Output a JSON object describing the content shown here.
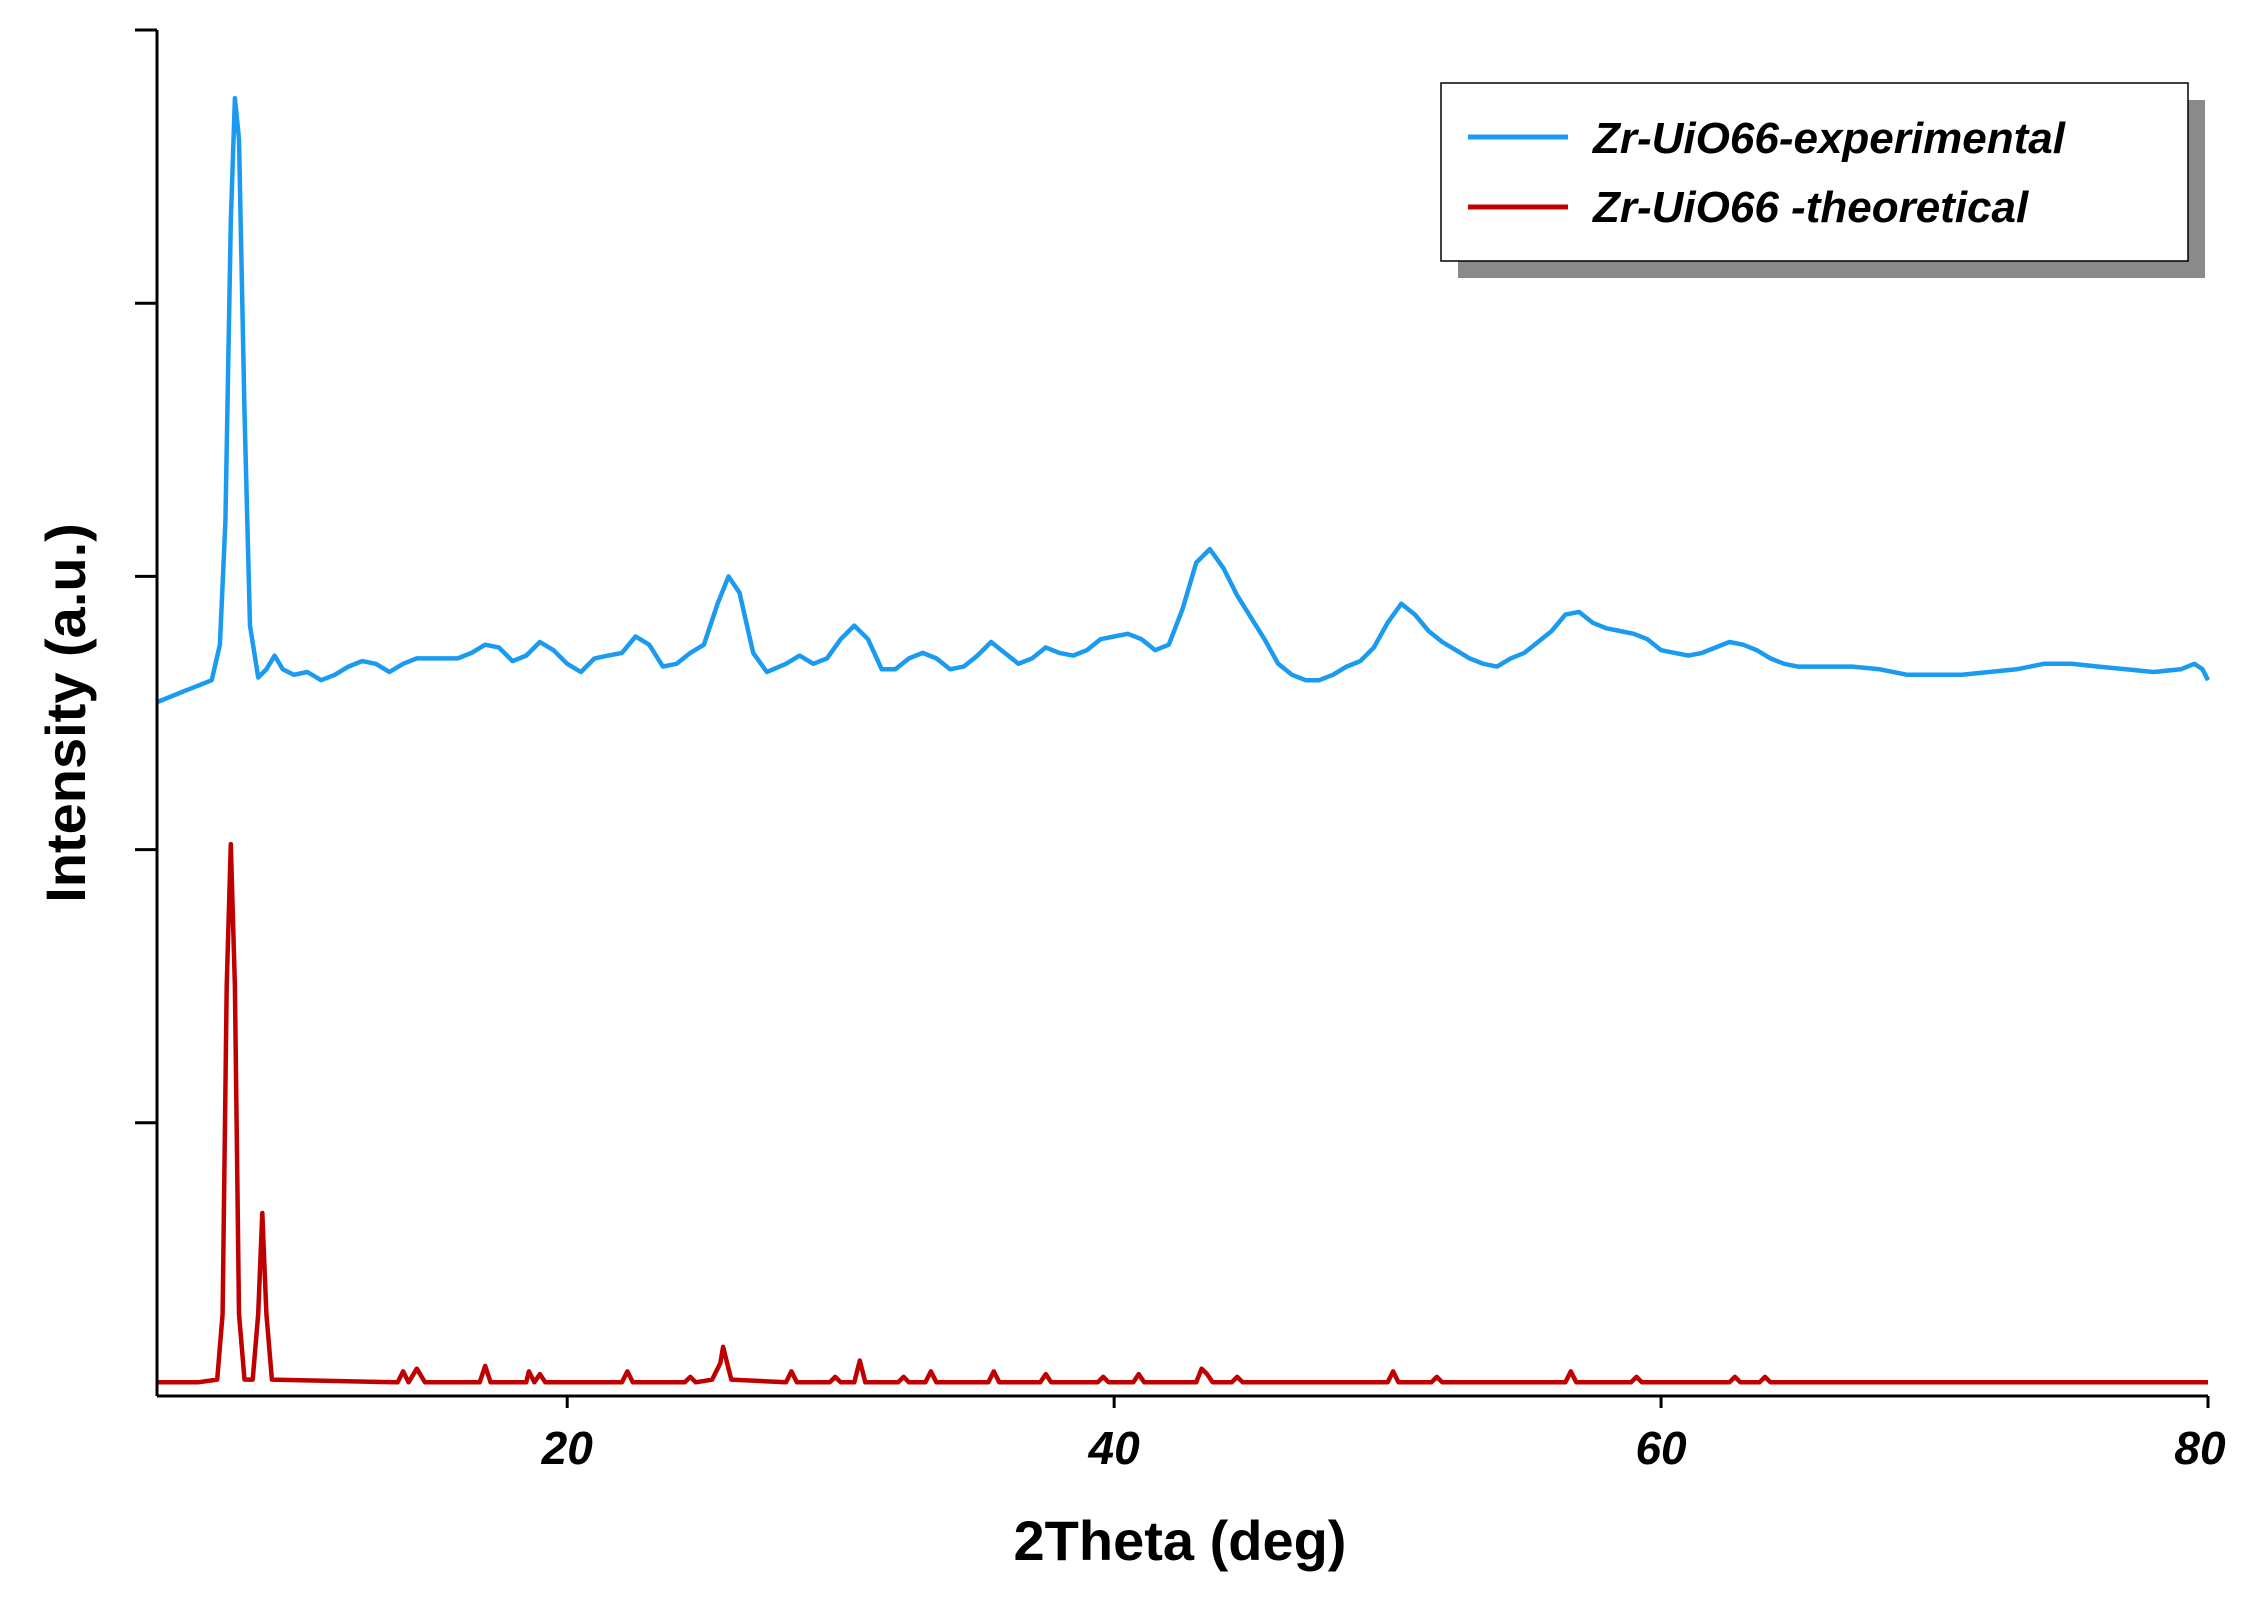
{
  "chart_data": {
    "type": "line",
    "title": "",
    "xlabel": "2Theta (deg)",
    "ylabel": "Intensity (a.u.)",
    "xlim": [
      5,
      80
    ],
    "ylim": [
      0,
      5
    ],
    "x_ticks": [
      20,
      40,
      60,
      80
    ],
    "x_tick_labels": [
      "20",
      "40",
      "60",
      "80"
    ],
    "y_ticks": [
      1,
      2,
      3,
      4,
      5
    ],
    "y_tick_labels_shown": false,
    "grid": false,
    "legend_position": "top-right",
    "series": [
      {
        "name": "Zr-UiO66-experimental",
        "color": "#1a9bf0",
        "points": [
          [
            5.0,
            2.54
          ],
          [
            5.5,
            2.56
          ],
          [
            6.0,
            2.58
          ],
          [
            6.5,
            2.6
          ],
          [
            7.0,
            2.62
          ],
          [
            7.3,
            2.75
          ],
          [
            7.5,
            3.2
          ],
          [
            7.7,
            4.3
          ],
          [
            7.85,
            4.75
          ],
          [
            8.0,
            4.6
          ],
          [
            8.2,
            3.6
          ],
          [
            8.4,
            2.82
          ],
          [
            8.7,
            2.63
          ],
          [
            9.0,
            2.66
          ],
          [
            9.3,
            2.71
          ],
          [
            9.6,
            2.66
          ],
          [
            10.0,
            2.64
          ],
          [
            10.5,
            2.65
          ],
          [
            11.0,
            2.62
          ],
          [
            11.5,
            2.64
          ],
          [
            12.0,
            2.67
          ],
          [
            12.5,
            2.69
          ],
          [
            13.0,
            2.68
          ],
          [
            13.5,
            2.65
          ],
          [
            14.0,
            2.68
          ],
          [
            14.5,
            2.7
          ],
          [
            15.0,
            2.7
          ],
          [
            16.0,
            2.7
          ],
          [
            16.5,
            2.72
          ],
          [
            17.0,
            2.75
          ],
          [
            17.5,
            2.74
          ],
          [
            18.0,
            2.69
          ],
          [
            18.5,
            2.71
          ],
          [
            19.0,
            2.76
          ],
          [
            19.5,
            2.73
          ],
          [
            20.0,
            2.68
          ],
          [
            20.5,
            2.65
          ],
          [
            21.0,
            2.7
          ],
          [
            21.5,
            2.71
          ],
          [
            22.0,
            2.72
          ],
          [
            22.5,
            2.78
          ],
          [
            23.0,
            2.75
          ],
          [
            23.5,
            2.67
          ],
          [
            24.0,
            2.68
          ],
          [
            24.5,
            2.72
          ],
          [
            25.0,
            2.75
          ],
          [
            25.5,
            2.9
          ],
          [
            25.9,
            3.0
          ],
          [
            26.3,
            2.94
          ],
          [
            26.8,
            2.72
          ],
          [
            27.3,
            2.65
          ],
          [
            28.0,
            2.68
          ],
          [
            28.5,
            2.71
          ],
          [
            29.0,
            2.68
          ],
          [
            29.5,
            2.7
          ],
          [
            30.0,
            2.77
          ],
          [
            30.5,
            2.82
          ],
          [
            31.0,
            2.77
          ],
          [
            31.5,
            2.66
          ],
          [
            32.0,
            2.66
          ],
          [
            32.5,
            2.7
          ],
          [
            33.0,
            2.72
          ],
          [
            33.5,
            2.7
          ],
          [
            34.0,
            2.66
          ],
          [
            34.5,
            2.67
          ],
          [
            35.0,
            2.71
          ],
          [
            35.5,
            2.76
          ],
          [
            36.0,
            2.72
          ],
          [
            36.5,
            2.68
          ],
          [
            37.0,
            2.7
          ],
          [
            37.5,
            2.74
          ],
          [
            38.0,
            2.72
          ],
          [
            38.5,
            2.71
          ],
          [
            39.0,
            2.73
          ],
          [
            39.5,
            2.77
          ],
          [
            40.0,
            2.78
          ],
          [
            40.5,
            2.79
          ],
          [
            41.0,
            2.77
          ],
          [
            41.5,
            2.73
          ],
          [
            42.0,
            2.75
          ],
          [
            42.5,
            2.88
          ],
          [
            43.0,
            3.05
          ],
          [
            43.5,
            3.1
          ],
          [
            44.0,
            3.03
          ],
          [
            44.5,
            2.93
          ],
          [
            45.0,
            2.85
          ],
          [
            45.5,
            2.77
          ],
          [
            46.0,
            2.68
          ],
          [
            46.5,
            2.64
          ],
          [
            47.0,
            2.62
          ],
          [
            47.5,
            2.62
          ],
          [
            48.0,
            2.64
          ],
          [
            48.5,
            2.67
          ],
          [
            49.0,
            2.69
          ],
          [
            49.5,
            2.74
          ],
          [
            50.0,
            2.83
          ],
          [
            50.5,
            2.9
          ],
          [
            51.0,
            2.86
          ],
          [
            51.5,
            2.8
          ],
          [
            52.0,
            2.76
          ],
          [
            52.5,
            2.73
          ],
          [
            53.0,
            2.7
          ],
          [
            53.5,
            2.68
          ],
          [
            54.0,
            2.67
          ],
          [
            54.5,
            2.7
          ],
          [
            55.0,
            2.72
          ],
          [
            55.5,
            2.76
          ],
          [
            56.0,
            2.8
          ],
          [
            56.5,
            2.86
          ],
          [
            57.0,
            2.87
          ],
          [
            57.5,
            2.83
          ],
          [
            58.0,
            2.81
          ],
          [
            58.5,
            2.8
          ],
          [
            59.0,
            2.79
          ],
          [
            59.5,
            2.77
          ],
          [
            60.0,
            2.73
          ],
          [
            60.5,
            2.72
          ],
          [
            61.0,
            2.71
          ],
          [
            61.5,
            2.72
          ],
          [
            62.0,
            2.74
          ],
          [
            62.5,
            2.76
          ],
          [
            63.0,
            2.75
          ],
          [
            63.5,
            2.73
          ],
          [
            64.0,
            2.7
          ],
          [
            64.5,
            2.68
          ],
          [
            65.0,
            2.67
          ],
          [
            66.0,
            2.67
          ],
          [
            67.0,
            2.67
          ],
          [
            68.0,
            2.66
          ],
          [
            69.0,
            2.64
          ],
          [
            70.0,
            2.64
          ],
          [
            71.0,
            2.64
          ],
          [
            72.0,
            2.65
          ],
          [
            73.0,
            2.66
          ],
          [
            74.0,
            2.68
          ],
          [
            75.0,
            2.68
          ],
          [
            76.0,
            2.67
          ],
          [
            77.0,
            2.66
          ],
          [
            78.0,
            2.65
          ],
          [
            79.0,
            2.66
          ],
          [
            79.5,
            2.68
          ],
          [
            79.8,
            2.66
          ],
          [
            80.0,
            2.62
          ]
        ]
      },
      {
        "name": "Zr-UiO66 -theoretical",
        "color": "#c00000",
        "points": [
          [
            5.0,
            0.05
          ],
          [
            6.5,
            0.05
          ],
          [
            7.2,
            0.06
          ],
          [
            7.4,
            0.3
          ],
          [
            7.55,
            1.5
          ],
          [
            7.7,
            2.02
          ],
          [
            7.85,
            1.5
          ],
          [
            8.0,
            0.3
          ],
          [
            8.2,
            0.06
          ],
          [
            8.5,
            0.06
          ],
          [
            8.7,
            0.3
          ],
          [
            8.85,
            0.67
          ],
          [
            9.0,
            0.3
          ],
          [
            9.2,
            0.06
          ],
          [
            13.8,
            0.05
          ],
          [
            14.0,
            0.09
          ],
          [
            14.2,
            0.05
          ],
          [
            14.5,
            0.1
          ],
          [
            14.8,
            0.05
          ],
          [
            16.8,
            0.05
          ],
          [
            17.0,
            0.11
          ],
          [
            17.2,
            0.05
          ],
          [
            18.5,
            0.05
          ],
          [
            18.6,
            0.09
          ],
          [
            18.8,
            0.05
          ],
          [
            19.0,
            0.08
          ],
          [
            19.2,
            0.05
          ],
          [
            22.0,
            0.05
          ],
          [
            22.2,
            0.09
          ],
          [
            22.4,
            0.05
          ],
          [
            24.3,
            0.05
          ],
          [
            24.5,
            0.07
          ],
          [
            24.7,
            0.05
          ],
          [
            25.3,
            0.06
          ],
          [
            25.6,
            0.12
          ],
          [
            25.7,
            0.18
          ],
          [
            25.8,
            0.14
          ],
          [
            26.0,
            0.06
          ],
          [
            28.0,
            0.05
          ],
          [
            28.2,
            0.09
          ],
          [
            28.4,
            0.05
          ],
          [
            29.6,
            0.05
          ],
          [
            29.8,
            0.07
          ],
          [
            30.0,
            0.05
          ],
          [
            30.5,
            0.05
          ],
          [
            30.7,
            0.13
          ],
          [
            30.9,
            0.05
          ],
          [
            32.1,
            0.05
          ],
          [
            32.3,
            0.07
          ],
          [
            32.5,
            0.05
          ],
          [
            33.1,
            0.05
          ],
          [
            33.3,
            0.09
          ],
          [
            33.5,
            0.05
          ],
          [
            35.4,
            0.05
          ],
          [
            35.6,
            0.09
          ],
          [
            35.8,
            0.05
          ],
          [
            37.3,
            0.05
          ],
          [
            37.5,
            0.08
          ],
          [
            37.7,
            0.05
          ],
          [
            39.4,
            0.05
          ],
          [
            39.6,
            0.07
          ],
          [
            39.8,
            0.05
          ],
          [
            40.7,
            0.05
          ],
          [
            40.9,
            0.08
          ],
          [
            41.1,
            0.05
          ],
          [
            43.0,
            0.05
          ],
          [
            43.2,
            0.1
          ],
          [
            43.4,
            0.08
          ],
          [
            43.6,
            0.05
          ],
          [
            44.3,
            0.05
          ],
          [
            44.5,
            0.07
          ],
          [
            44.7,
            0.05
          ],
          [
            50.0,
            0.05
          ],
          [
            50.2,
            0.09
          ],
          [
            50.4,
            0.05
          ],
          [
            51.6,
            0.05
          ],
          [
            51.8,
            0.07
          ],
          [
            52.0,
            0.05
          ],
          [
            56.5,
            0.05
          ],
          [
            56.7,
            0.09
          ],
          [
            56.9,
            0.05
          ],
          [
            58.9,
            0.05
          ],
          [
            59.1,
            0.07
          ],
          [
            59.3,
            0.05
          ],
          [
            62.5,
            0.05
          ],
          [
            62.7,
            0.07
          ],
          [
            62.9,
            0.05
          ],
          [
            63.6,
            0.05
          ],
          [
            63.8,
            0.07
          ],
          [
            64.0,
            0.05
          ],
          [
            80.0,
            0.05
          ]
        ]
      }
    ]
  }
}
